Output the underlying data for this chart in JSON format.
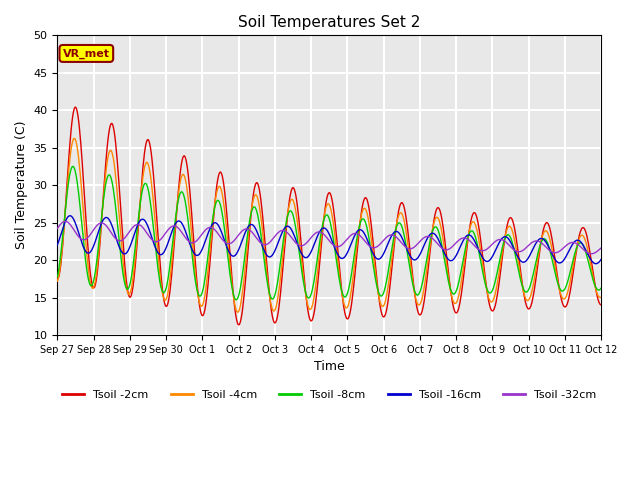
{
  "title": "Soil Temperatures Set 2",
  "xlabel": "Time",
  "ylabel": "Soil Temperature (C)",
  "ylim": [
    10,
    50
  ],
  "annotation": "VR_met",
  "line_colors": {
    "2cm": "#dd0000",
    "4cm": "#ff8800",
    "8cm": "#00cc00",
    "16cm": "#0000cc",
    "32cm": "#9933cc"
  },
  "legend_labels": [
    "Tsoil -2cm",
    "Tsoil -4cm",
    "Tsoil -8cm",
    "Tsoil -16cm",
    "Tsoil -32cm"
  ],
  "x_tick_labels": [
    "Sep 27",
    "Sep 28",
    "Sep 29",
    "Sep 30",
    "Oct 1",
    "Oct 2",
    "Oct 3",
    "Oct 4",
    "Oct 5",
    "Oct 6",
    "Oct 7",
    "Oct 8",
    "Oct 9",
    "Oct 10",
    "Oct 11",
    "Oct 12"
  ],
  "plot_bg_color": "#e8e8e8",
  "grid_color": "#ffffff"
}
